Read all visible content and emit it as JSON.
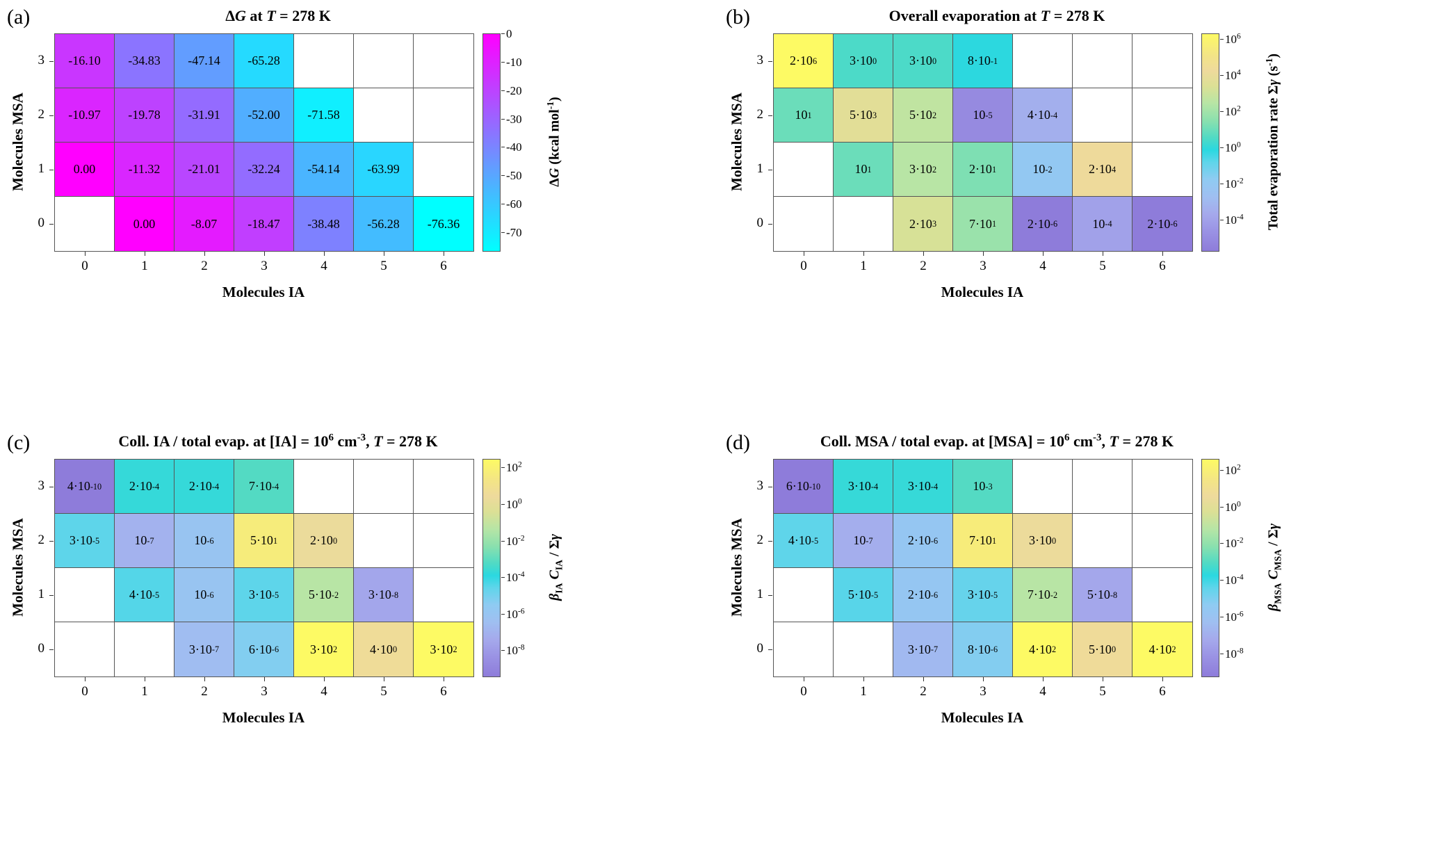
{
  "style": {
    "background": "#FFFFFF",
    "gridline": "#555555",
    "text": "#000000"
  },
  "colormaps": {
    "cool": {
      "type": "lerp2",
      "from": "#00FFFF",
      "to": "#FF00FF"
    },
    "evap": {
      "type": "stops",
      "stops": [
        [
          0.0,
          "#8E7CDA"
        ],
        [
          0.09,
          "#9A92E4"
        ],
        [
          0.17,
          "#A5A9EC"
        ],
        [
          0.25,
          "#9FBFF1"
        ],
        [
          0.33,
          "#8FCBF2"
        ],
        [
          0.41,
          "#5ED5EA"
        ],
        [
          0.465,
          "#2BD8E0"
        ],
        [
          0.52,
          "#4FDAC5"
        ],
        [
          0.6,
          "#8AE0AE"
        ],
        [
          0.68,
          "#B7E5A5"
        ],
        [
          0.76,
          "#DCE095"
        ],
        [
          0.83,
          "#EEDA9C"
        ],
        [
          0.9,
          "#F3E487"
        ],
        [
          1.0,
          "#FDFA64"
        ]
      ]
    }
  },
  "chart_data": [
    {
      "id": "a",
      "type": "heatmap",
      "corner_label": "(a)",
      "title": "Δ*G* at *T* = 278 K",
      "xlabel": "Molecules IA",
      "ylabel": "Molecules MSA",
      "x_ticks": [
        "0",
        "1",
        "2",
        "3",
        "4",
        "5",
        "6"
      ],
      "y_ticks": [
        "3",
        "2",
        "1",
        "0"
      ],
      "scale": {
        "kind": "linear",
        "min": -76.36,
        "max": 0,
        "cmap": "cool"
      },
      "cells": [
        [
          "-16.10",
          "-34.83",
          "-47.14",
          "-65.28",
          null,
          null,
          null
        ],
        [
          "-10.97",
          "-19.78",
          "-31.91",
          "-52.00",
          "-71.58",
          null,
          null
        ],
        [
          "0.00",
          "-11.32",
          "-21.01",
          "-32.24",
          "-54.14",
          "-63.99",
          null
        ],
        [
          null,
          "0.00",
          "-8.07",
          "-18.47",
          "-38.48",
          "-56.28",
          "-76.36"
        ]
      ],
      "colorbar": {
        "label": "Δ*G* (kcal mol^{-1})",
        "ticks": [
          {
            "label": "0",
            "pos": 0.0
          },
          {
            "label": "-10",
            "pos": 0.131
          },
          {
            "label": "-20",
            "pos": 0.262
          },
          {
            "label": "-30",
            "pos": 0.393
          },
          {
            "label": "-40",
            "pos": 0.524
          },
          {
            "label": "-50",
            "pos": 0.655
          },
          {
            "label": "-60",
            "pos": 0.786
          },
          {
            "label": "-70",
            "pos": 0.917
          }
        ]
      }
    },
    {
      "id": "b",
      "type": "heatmap",
      "corner_label": "(b)",
      "title": "Overall evaporation at *T* = 278 K",
      "xlabel": "Molecules IA",
      "ylabel": "Molecules MSA",
      "x_ticks": [
        "0",
        "1",
        "2",
        "3",
        "4",
        "5",
        "6"
      ],
      "y_ticks": [
        "3",
        "2",
        "1",
        "0"
      ],
      "scale": {
        "kind": "log",
        "logmin": -5.7,
        "logmax": 6.3,
        "cmap": "evap"
      },
      "cells": [
        [
          "2·10^{6}",
          "3·10^{0}",
          "3·10^{0}",
          "8·10^{-1}",
          null,
          null,
          null
        ],
        [
          "10^{1}",
          "5·10^{3}",
          "5·10^{2}",
          "10^{-5}",
          "4·10^{-4}",
          null,
          null
        ],
        [
          null,
          "10^{1}",
          "3·10^{2}",
          "2·10^{1}",
          "10^{-2}",
          "2·10^{4}",
          null
        ],
        [
          null,
          null,
          "2·10^{3}",
          "7·10^{1}",
          "2·10^{-6}",
          "10^{-4}",
          "2·10^{-6}"
        ]
      ],
      "colorbar": {
        "label": "Total evaporation rate Σ*γ* (s^{-1})",
        "ticks": [
          {
            "label": "10^{6}",
            "pos": 0.025
          },
          {
            "label": "10^{4}",
            "pos": 0.192
          },
          {
            "label": "10^{2}",
            "pos": 0.358
          },
          {
            "label": "10^{0}",
            "pos": 0.525
          },
          {
            "label": "10^{-2}",
            "pos": 0.692
          },
          {
            "label": "10^{-4}",
            "pos": 0.858
          }
        ]
      }
    },
    {
      "id": "c",
      "type": "heatmap",
      "corner_label": "(c)",
      "title": "Coll. IA / total evap. at [IA] = 10^{6} cm^{-3}, *T* = 278 K",
      "xlabel": "Molecules IA",
      "ylabel": "Molecules MSA",
      "x_ticks": [
        "0",
        "1",
        "2",
        "3",
        "4",
        "5",
        "6"
      ],
      "y_ticks": [
        "3",
        "2",
        "1",
        "0"
      ],
      "scale": {
        "kind": "log",
        "logmin": -9.4,
        "logmax": 2.48,
        "cmap": "evap"
      },
      "cells": [
        [
          "4·10^{-10}",
          "2·10^{-4}",
          "2·10^{-4}",
          "7·10^{-4}",
          null,
          null,
          null
        ],
        [
          "3·10^{-5}",
          "10^{-7}",
          "10^{-6}",
          "5·10^{1}",
          "2·10^{0}",
          null,
          null
        ],
        [
          null,
          "4·10^{-5}",
          "10^{-6}",
          "3·10^{-5}",
          "5·10^{-2}",
          "3·10^{-8}",
          null
        ],
        [
          null,
          null,
          "3·10^{-7}",
          "6·10^{-6}",
          "3·10^{2}",
          "4·10^{0}",
          "3·10^{2}"
        ]
      ],
      "colorbar": {
        "label": "*β*_{IA} *C*_{IA} / Σ*γ*",
        "ticks": [
          {
            "label": "10^{2}",
            "pos": 0.04
          },
          {
            "label": "10^{0}",
            "pos": 0.209
          },
          {
            "label": "10^{-2}",
            "pos": 0.377
          },
          {
            "label": "10^{-4}",
            "pos": 0.545
          },
          {
            "label": "10^{-6}",
            "pos": 0.714
          },
          {
            "label": "10^{-8}",
            "pos": 0.882
          }
        ]
      }
    },
    {
      "id": "d",
      "type": "heatmap",
      "corner_label": "(d)",
      "title": "Coll. MSA / total evap. at [MSA] = 10^{6} cm^{-3}, *T* = 278 K",
      "xlabel": "Molecules IA",
      "ylabel": "Molecules MSA",
      "x_ticks": [
        "0",
        "1",
        "2",
        "3",
        "4",
        "5",
        "6"
      ],
      "y_ticks": [
        "3",
        "2",
        "1",
        "0"
      ],
      "scale": {
        "kind": "log",
        "logmin": -9.22,
        "logmax": 2.6,
        "cmap": "evap"
      },
      "cells": [
        [
          "6·10^{-10}",
          "3·10^{-4}",
          "3·10^{-4}",
          "10^{-3}",
          null,
          null,
          null
        ],
        [
          "4·10^{-5}",
          "10^{-7}",
          "2·10^{-6}",
          "7·10^{1}",
          "3·10^{0}",
          null,
          null
        ],
        [
          null,
          "5·10^{-5}",
          "2·10^{-6}",
          "3·10^{-5}",
          "7·10^{-2}",
          "5·10^{-8}",
          null
        ],
        [
          null,
          null,
          "3·10^{-7}",
          "8·10^{-6}",
          "4·10^{2}",
          "5·10^{0}",
          "4·10^{2}"
        ]
      ],
      "colorbar": {
        "label": "*β*_{MSA} *C*_{MSA} / Σ*γ*",
        "ticks": [
          {
            "label": "10^{2}",
            "pos": 0.051
          },
          {
            "label": "10^{0}",
            "pos": 0.22
          },
          {
            "label": "10^{-2}",
            "pos": 0.389
          },
          {
            "label": "10^{-4}",
            "pos": 0.559
          },
          {
            "label": "10^{-6}",
            "pos": 0.728
          },
          {
            "label": "10^{-8}",
            "pos": 0.897
          }
        ]
      }
    }
  ]
}
